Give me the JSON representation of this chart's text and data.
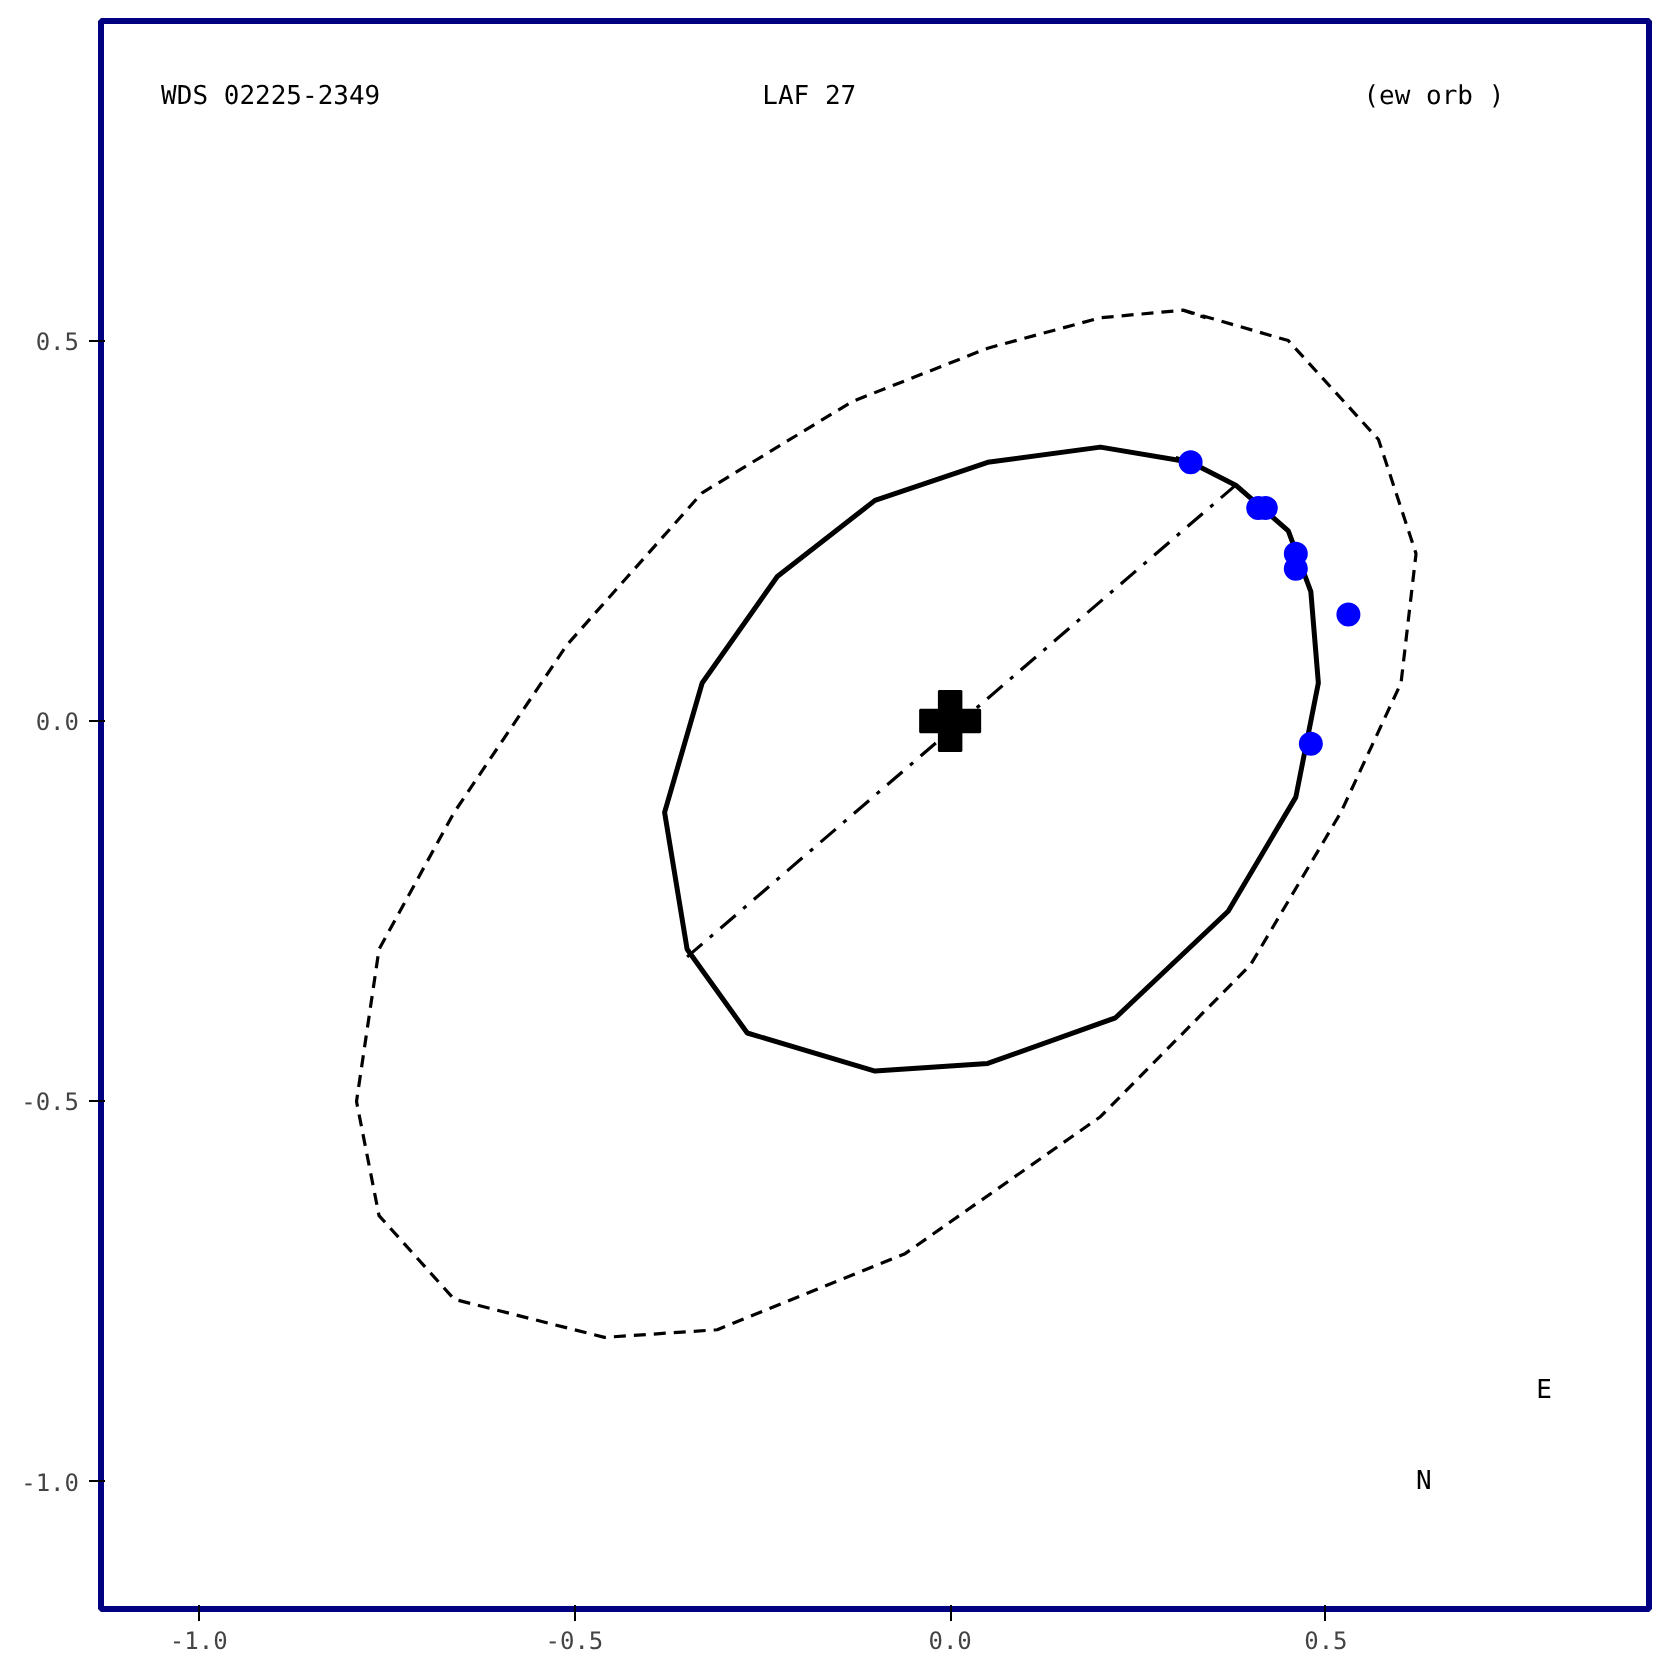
{
  "chart_data": {
    "type": "line",
    "annotations": [
      "WDS 02225-2349",
      "LAF  27",
      "(ew orb )",
      "N",
      "E"
    ],
    "series": [
      {
        "color": "#000000",
        "line_style": "dashed",
        "x": [
          0.31,
          0.45,
          0.57,
          0.62,
          0.6,
          0.52,
          0.4,
          0.2,
          -0.06,
          -0.31,
          -0.46,
          -0.66,
          -0.76,
          -0.79,
          -0.76,
          -0.66,
          -0.51,
          -0.33,
          -0.13,
          0.05,
          0.2,
          0.31,
          0.34
        ],
        "values": [
          0.54,
          0.5,
          0.37,
          0.22,
          0.05,
          -0.12,
          -0.32,
          -0.52,
          -0.7,
          -0.8,
          -0.81,
          -0.76,
          -0.65,
          -0.5,
          -0.3,
          -0.12,
          0.1,
          0.3,
          0.42,
          0.49,
          0.53,
          0.54,
          0.53
        ]
      },
      {
        "color": "#000000",
        "line_style": "solid",
        "x": [
          0.32,
          0.2,
          0.05,
          -0.1,
          -0.23,
          -0.33,
          -0.38,
          -0.35,
          -0.27,
          -0.1,
          0.05,
          0.22,
          0.37,
          0.46,
          0.49,
          0.48,
          0.45,
          0.38,
          0.32,
          0.3
        ],
        "values": [
          0.34,
          0.36,
          0.34,
          0.29,
          0.19,
          0.05,
          -0.12,
          -0.3,
          -0.41,
          -0.46,
          -0.45,
          -0.39,
          -0.25,
          -0.1,
          0.05,
          0.17,
          0.25,
          0.31,
          0.34,
          0.345
        ]
      },
      {
        "color": "#000000",
        "line_style": "dashdot",
        "x": [
          -0.35,
          0.38
        ],
        "values": [
          -0.31,
          0.31
        ]
      },
      {
        "type": "scatter",
        "color": "#0000ff",
        "marker": "circle",
        "x": [
          0.32,
          0.41,
          0.42,
          0.46,
          0.46,
          0.53,
          0.48
        ],
        "values": [
          0.34,
          0.28,
          0.28,
          0.22,
          0.2,
          0.14,
          -0.03
        ]
      },
      {
        "type": "scatter",
        "color": "#000000",
        "marker": "cross",
        "x": [
          0.0
        ],
        "values": [
          0.0
        ]
      }
    ],
    "xlim": [
      -1.13,
      0.93
    ],
    "ylim": [
      -1.167,
      0.92
    ],
    "xticks": [
      {
        "value": -1,
        "label": "-1.0"
      },
      {
        "value": -0.5,
        "label": "-0.5"
      },
      {
        "value": 0,
        "label": "0.0"
      },
      {
        "value": 0.5,
        "label": "0.5"
      }
    ],
    "yticks": [
      {
        "value": 0.5,
        "label": "0.5"
      },
      {
        "value": 0,
        "label": "0.0"
      },
      {
        "value": -0.5,
        "label": "-0.5"
      },
      {
        "value": -1,
        "label": "-1.0"
      }
    ],
    "grid": false
  }
}
